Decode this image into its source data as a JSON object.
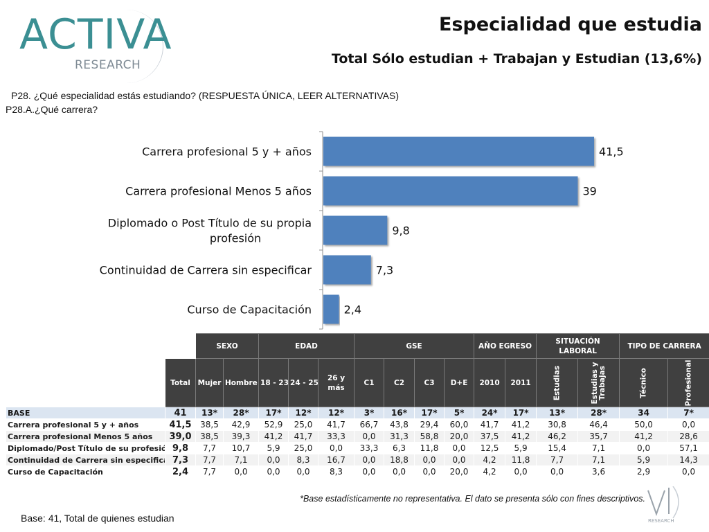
{
  "logo": {
    "main": "ACTIVA",
    "sub": "RESEARCH"
  },
  "header": {
    "title": "Especialidad que estudia",
    "subtitle": "Total Sólo estudian + Trabajan y Estudian (13,6%)"
  },
  "question": {
    "line1": "P28. ¿Qué especialidad estás estudiando? (RESPUESTA ÚNICA, LEER ALTERNATIVAS)",
    "line2": "P28.A.¿Qué carrera?"
  },
  "chart_data": {
    "type": "bar",
    "orientation": "horizontal",
    "categories": [
      [
        "Carrera profesional 5 y + años"
      ],
      [
        "Carrera profesional Menos 5 años"
      ],
      [
        "Diplomado o Post Título de su propia",
        "profesión"
      ],
      [
        "Continuidad de Carrera sin especificar"
      ],
      [
        "Curso de Capacitación"
      ]
    ],
    "values": [
      41.5,
      39,
      9.8,
      7.3,
      2.4
    ],
    "value_labels": [
      "41,5",
      "39",
      "9,8",
      "7,3",
      "2,4"
    ],
    "xlim": [
      0,
      45
    ],
    "bar_color": "#4f81bd",
    "grid": false
  },
  "table": {
    "groups": [
      "SEXO",
      "EDAD",
      "GSE",
      "AÑO EGRESO",
      "SITUACIÓN LABORAL",
      "TIPO DE CARRERA"
    ],
    "subheaders": [
      "Total",
      "Mujer",
      "Hombre",
      "18 - 23",
      "24 - 25",
      "26 y más",
      "C1",
      "C2",
      "C3",
      "D+E",
      "2010",
      "2011"
    ],
    "vertical_subheaders": [
      "Estudias",
      "Estudias y Trabajas",
      "Técnico",
      "Profesional"
    ],
    "rows": [
      {
        "label": "BASE",
        "cells": [
          "41",
          "13*",
          "28*",
          "17*",
          "12*",
          "12*",
          "3*",
          "16*",
          "17*",
          "5*",
          "24*",
          "17*",
          "13*",
          "28*",
          "34",
          "7*"
        ]
      },
      {
        "label": "Carrera profesional 5 y + años",
        "cells": [
          "41,5",
          "38,5",
          "42,9",
          "52,9",
          "25,0",
          "41,7",
          "66,7",
          "43,8",
          "29,4",
          "60,0",
          "41,7",
          "41,2",
          "30,8",
          "46,4",
          "50,0",
          "0,0"
        ]
      },
      {
        "label": "Carrera profesional Menos 5 años",
        "cells": [
          "39,0",
          "38,5",
          "39,3",
          "41,2",
          "41,7",
          "33,3",
          "0,0",
          "31,3",
          "58,8",
          "20,0",
          "37,5",
          "41,2",
          "46,2",
          "35,7",
          "41,2",
          "28,6"
        ]
      },
      {
        "label": "Diplomado/Post Título de su profesión",
        "cells": [
          "9,8",
          "7,7",
          "10,7",
          "5,9",
          "25,0",
          "0,0",
          "33,3",
          "6,3",
          "11,8",
          "0,0",
          "12,5",
          "5,9",
          "15,4",
          "7,1",
          "0,0",
          "57,1"
        ]
      },
      {
        "label": "Continuidad de Carrera sin especificar",
        "cells": [
          "7,3",
          "7,7",
          "7,1",
          "0,0",
          "8,3",
          "16,7",
          "0,0",
          "18,8",
          "0,0",
          "0,0",
          "4,2",
          "11,8",
          "7,7",
          "7,1",
          "5,9",
          "14,3"
        ]
      },
      {
        "label": "Curso de Capacitación",
        "cells": [
          "2,4",
          "7,7",
          "0,0",
          "0,0",
          "0,0",
          "8,3",
          "0,0",
          "0,0",
          "0,0",
          "20,0",
          "4,2",
          "0,0",
          "0,0",
          "3,6",
          "2,9",
          "0,0"
        ]
      }
    ]
  },
  "footnote": "*Base estadísticamente no representativa. El dato se presenta sólo con fines descriptivos.",
  "base_text": "Base: 41, Total de quienes estudian",
  "corner_logo": {
    "sub": "RESEARCH"
  }
}
